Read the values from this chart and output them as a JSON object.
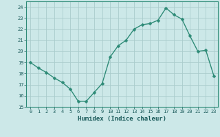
{
  "x": [
    0,
    1,
    2,
    3,
    4,
    5,
    6,
    7,
    8,
    9,
    10,
    11,
    12,
    13,
    14,
    15,
    16,
    17,
    18,
    19,
    20,
    21,
    22,
    23
  ],
  "y": [
    19.0,
    18.5,
    18.1,
    17.6,
    17.2,
    16.6,
    15.5,
    15.5,
    16.3,
    17.1,
    19.5,
    20.5,
    21.0,
    22.0,
    22.4,
    22.5,
    22.8,
    23.9,
    23.3,
    22.9,
    21.4,
    20.0,
    20.1,
    17.8
  ],
  "line_color": "#2e8b77",
  "marker_color": "#2e8b77",
  "bg_color": "#cce8e8",
  "grid_color": "#aacccc",
  "xlabel": "Humidex (Indice chaleur)",
  "xlim": [
    -0.5,
    23.5
  ],
  "ylim": [
    15,
    24.5
  ],
  "yticks": [
    15,
    16,
    17,
    18,
    19,
    20,
    21,
    22,
    23,
    24
  ],
  "xticks": [
    0,
    1,
    2,
    3,
    4,
    5,
    6,
    7,
    8,
    9,
    10,
    11,
    12,
    13,
    14,
    15,
    16,
    17,
    18,
    19,
    20,
    21,
    22,
    23
  ],
  "tick_fontsize": 5,
  "xlabel_fontsize": 6.5,
  "marker_size": 2.5,
  "line_width": 1.0
}
